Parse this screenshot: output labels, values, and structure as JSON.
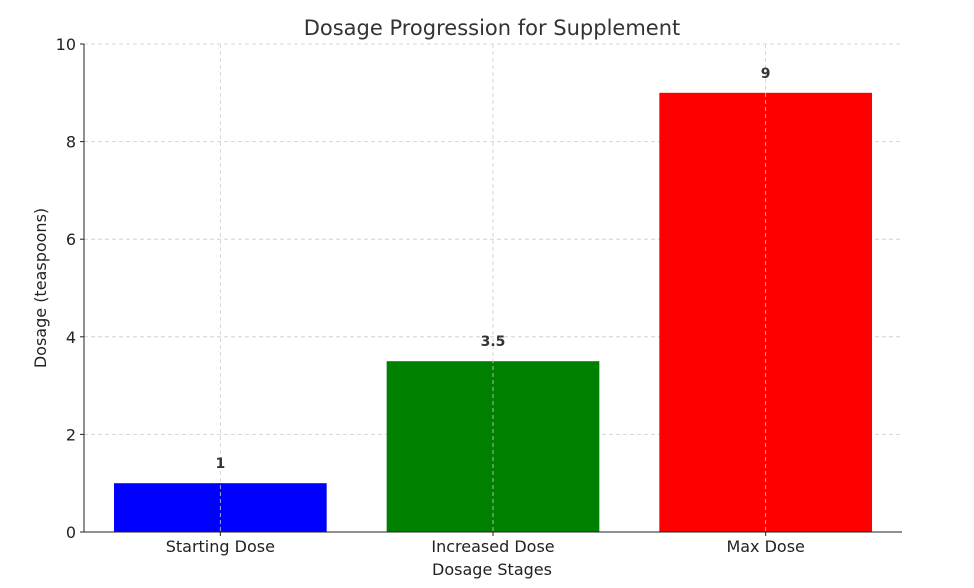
{
  "chart_data": {
    "type": "bar",
    "title": "Dosage Progression for Supplement",
    "xlabel": "Dosage Stages",
    "ylabel": "Dosage (teaspoons)",
    "categories": [
      "Starting Dose",
      "Increased Dose",
      "Max Dose"
    ],
    "values": [
      1,
      3.5,
      9
    ],
    "value_labels": [
      "1",
      "3.5",
      "9"
    ],
    "colors": [
      "#0000ff",
      "#008000",
      "#ff0000"
    ],
    "ylim": [
      0,
      10
    ],
    "yticks": [
      0,
      2,
      4,
      6,
      8,
      10
    ],
    "ytick_labels": [
      "0",
      "2",
      "4",
      "6",
      "8",
      "10"
    ],
    "grid": true
  }
}
